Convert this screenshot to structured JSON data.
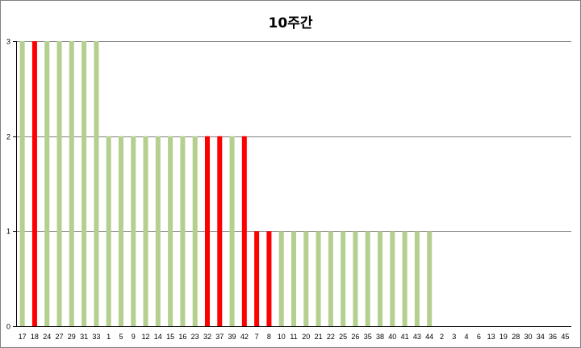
{
  "chart_data": {
    "type": "bar",
    "title": "10주간",
    "xlabel": "",
    "ylabel": "",
    "ylim": [
      0,
      3
    ],
    "yticks": [
      0,
      1,
      2,
      3
    ],
    "grid": true,
    "colors": {
      "normal": "#b5cf8f",
      "highlight": "#ff0000",
      "grid": "#808080"
    },
    "categories": [
      "17",
      "18",
      "24",
      "27",
      "29",
      "31",
      "33",
      "1",
      "5",
      "9",
      "12",
      "14",
      "15",
      "16",
      "23",
      "32",
      "37",
      "39",
      "42",
      "7",
      "8",
      "10",
      "11",
      "20",
      "21",
      "22",
      "25",
      "26",
      "35",
      "38",
      "40",
      "41",
      "43",
      "44",
      "2",
      "3",
      "4",
      "6",
      "13",
      "19",
      "28",
      "30",
      "34",
      "36",
      "45"
    ],
    "values": [
      3,
      3,
      3,
      3,
      3,
      3,
      3,
      2,
      2,
      2,
      2,
      2,
      2,
      2,
      2,
      2,
      2,
      2,
      2,
      1,
      1,
      1,
      1,
      1,
      1,
      1,
      1,
      1,
      1,
      1,
      1,
      1,
      1,
      1,
      0,
      0,
      0,
      0,
      0,
      0,
      0,
      0,
      0,
      0,
      0
    ],
    "highlighted": [
      "18",
      "32",
      "37",
      "42",
      "7",
      "8"
    ]
  }
}
